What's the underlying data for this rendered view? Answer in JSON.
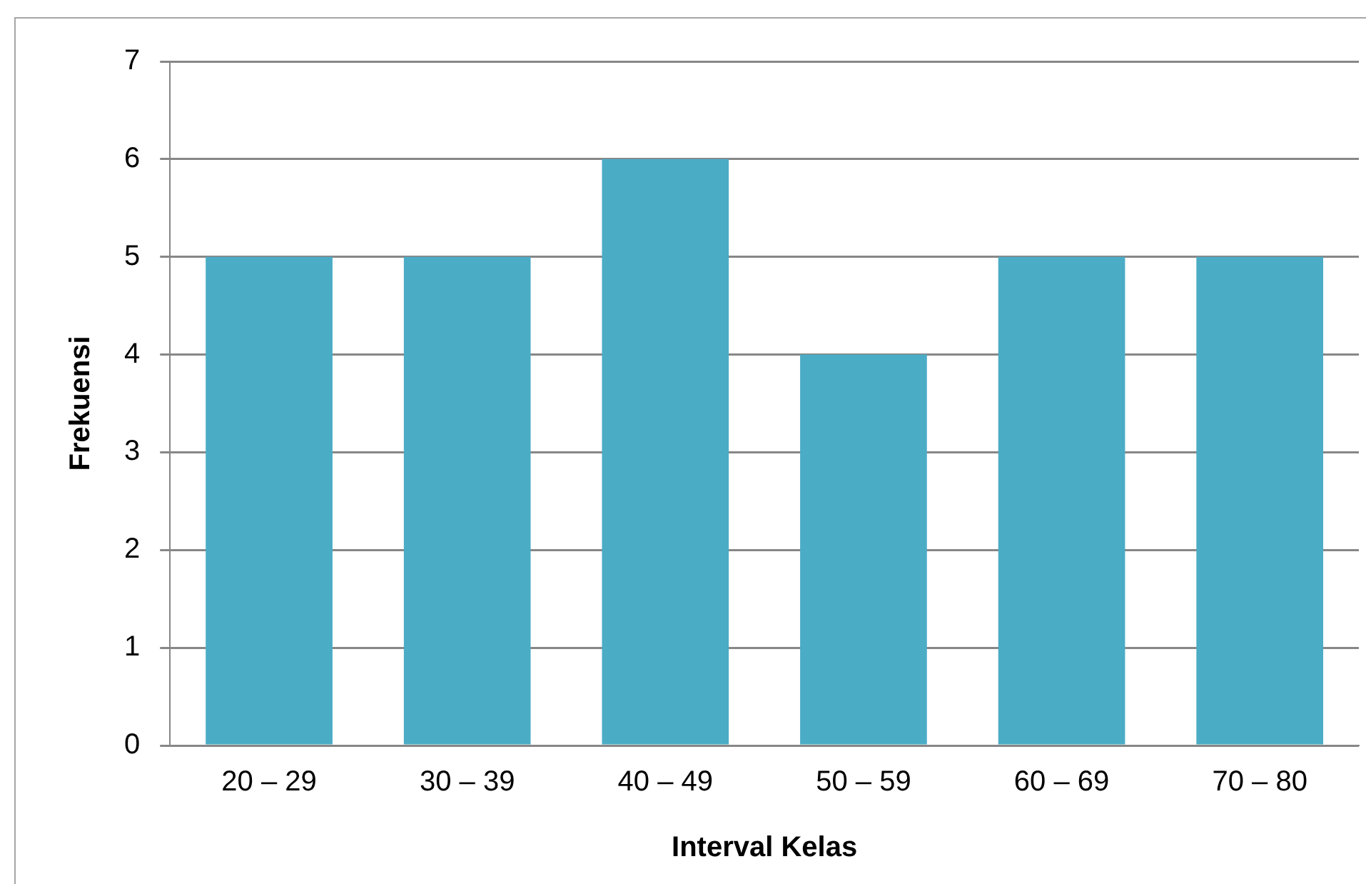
{
  "chart_data": {
    "type": "bar",
    "xlabel": "Interval Kelas",
    "ylabel": "Frekuensi",
    "categories": [
      "20 – 29",
      "30 – 39",
      "40 – 49",
      "50 – 59",
      "60 – 69",
      "70 – 80"
    ],
    "values": [
      5,
      5,
      6,
      4,
      5,
      5
    ],
    "color": "#4bacc6",
    "ylim": [
      0,
      7
    ],
    "yticks": [
      0,
      1,
      2,
      3,
      4,
      5,
      6,
      7
    ],
    "grid": "y",
    "legend": false
  }
}
